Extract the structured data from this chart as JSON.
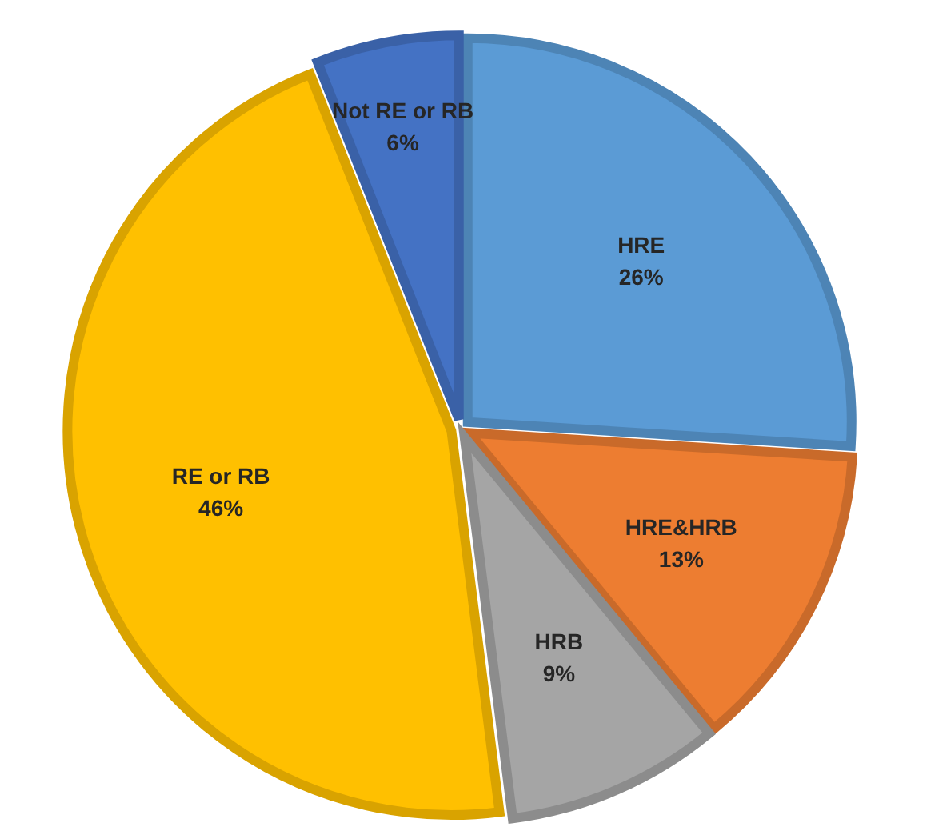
{
  "chart_data": {
    "type": "pie",
    "categories": [
      "HRE",
      "HRE&HRB",
      "HRB",
      "RE or RB",
      "Not RE or RB"
    ],
    "values": [
      26,
      13,
      9,
      46,
      6
    ],
    "value_labels": [
      "26%",
      "13%",
      "9%",
      "46%",
      "6%"
    ],
    "colors": [
      "#5b9bd5",
      "#ed7d31",
      "#a5a5a5",
      "#ffc000",
      "#4472c4"
    ]
  }
}
